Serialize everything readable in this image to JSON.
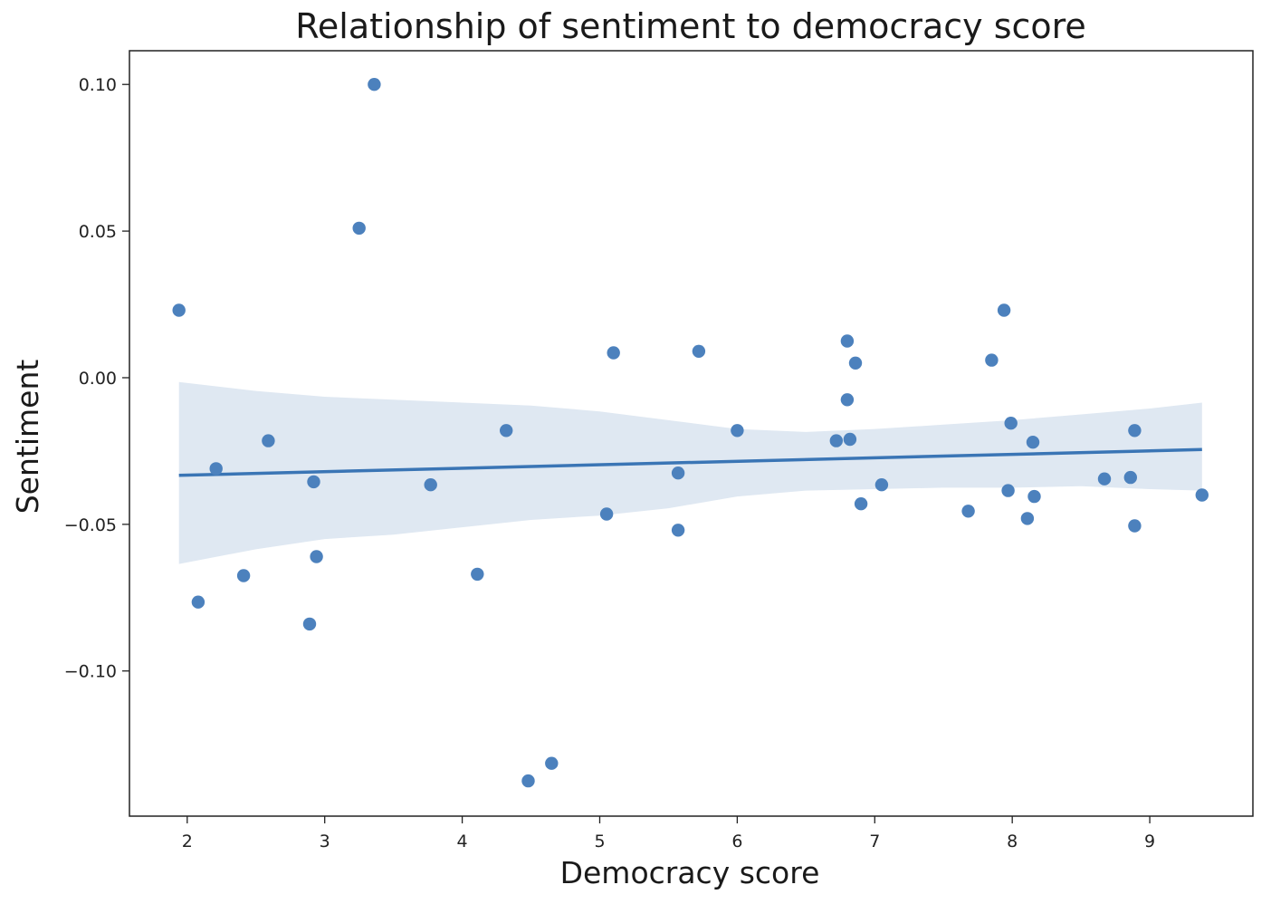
{
  "chart_data": {
    "type": "scatter",
    "title": "Relationship of sentiment to democracy score",
    "xlabel": "Democracy score",
    "ylabel": "Sentiment",
    "xlim": [
      1.58,
      9.75
    ],
    "ylim": [
      -0.1495,
      0.1115
    ],
    "x_ticks": [
      2,
      3,
      4,
      5,
      6,
      7,
      8,
      9
    ],
    "x_tick_labels": [
      "2",
      "3",
      "4",
      "5",
      "6",
      "7",
      "8",
      "9"
    ],
    "y_ticks": [
      0.1,
      0.05,
      0.0,
      -0.05,
      -0.1
    ],
    "y_tick_labels": [
      "0.10",
      "0.05",
      "0.00",
      "−0.05",
      "−0.10"
    ],
    "colors": {
      "points": "#4c81bd",
      "regression_line": "#3a75b5",
      "confidence_band": "#dfe8f2"
    },
    "points": [
      {
        "x": 1.94,
        "y": 0.023
      },
      {
        "x": 2.08,
        "y": -0.0765
      },
      {
        "x": 2.21,
        "y": -0.031
      },
      {
        "x": 2.41,
        "y": -0.0675
      },
      {
        "x": 2.59,
        "y": -0.0215
      },
      {
        "x": 2.89,
        "y": -0.084
      },
      {
        "x": 2.92,
        "y": -0.0355
      },
      {
        "x": 2.94,
        "y": -0.061
      },
      {
        "x": 3.25,
        "y": 0.051
      },
      {
        "x": 3.36,
        "y": 0.1
      },
      {
        "x": 3.77,
        "y": -0.0365
      },
      {
        "x": 4.11,
        "y": -0.067
      },
      {
        "x": 4.32,
        "y": -0.018
      },
      {
        "x": 4.48,
        "y": -0.1375
      },
      {
        "x": 4.65,
        "y": -0.1315
      },
      {
        "x": 5.05,
        "y": -0.0465
      },
      {
        "x": 5.1,
        "y": 0.0085
      },
      {
        "x": 5.57,
        "y": -0.0325
      },
      {
        "x": 5.57,
        "y": -0.052
      },
      {
        "x": 5.72,
        "y": 0.009
      },
      {
        "x": 6.0,
        "y": -0.018
      },
      {
        "x": 6.72,
        "y": -0.0215
      },
      {
        "x": 6.8,
        "y": 0.0125
      },
      {
        "x": 6.8,
        "y": -0.0075
      },
      {
        "x": 6.82,
        "y": -0.021
      },
      {
        "x": 6.86,
        "y": 0.005
      },
      {
        "x": 6.9,
        "y": -0.043
      },
      {
        "x": 7.05,
        "y": -0.0365
      },
      {
        "x": 7.68,
        "y": -0.0455
      },
      {
        "x": 7.85,
        "y": 0.006
      },
      {
        "x": 7.94,
        "y": 0.023
      },
      {
        "x": 7.97,
        "y": -0.0385
      },
      {
        "x": 7.99,
        "y": -0.0155
      },
      {
        "x": 8.11,
        "y": -0.048
      },
      {
        "x": 8.15,
        "y": -0.022
      },
      {
        "x": 8.16,
        "y": -0.0405
      },
      {
        "x": 8.67,
        "y": -0.0345
      },
      {
        "x": 8.86,
        "y": -0.034
      },
      {
        "x": 8.89,
        "y": -0.018
      },
      {
        "x": 8.89,
        "y": -0.0505
      },
      {
        "x": 9.38,
        "y": -0.04
      }
    ],
    "regression": {
      "x": [
        1.94,
        9.38
      ],
      "y": [
        -0.0333,
        -0.0245
      ]
    },
    "confidence_band": {
      "x": [
        1.94,
        2.5,
        3.0,
        3.5,
        4.0,
        4.5,
        5.0,
        5.5,
        6.0,
        6.5,
        7.0,
        7.5,
        8.0,
        8.5,
        9.0,
        9.38
      ],
      "upper": [
        -0.0015,
        -0.0045,
        -0.0065,
        -0.0075,
        -0.0085,
        -0.0095,
        -0.0115,
        -0.0145,
        -0.0175,
        -0.0185,
        -0.0175,
        -0.016,
        -0.0145,
        -0.0125,
        -0.0105,
        -0.0085
      ],
      "lower": [
        -0.0635,
        -0.0585,
        -0.055,
        -0.0535,
        -0.051,
        -0.0485,
        -0.047,
        -0.0445,
        -0.0405,
        -0.0385,
        -0.038,
        -0.0375,
        -0.0375,
        -0.037,
        -0.038,
        -0.0385
      ]
    }
  }
}
